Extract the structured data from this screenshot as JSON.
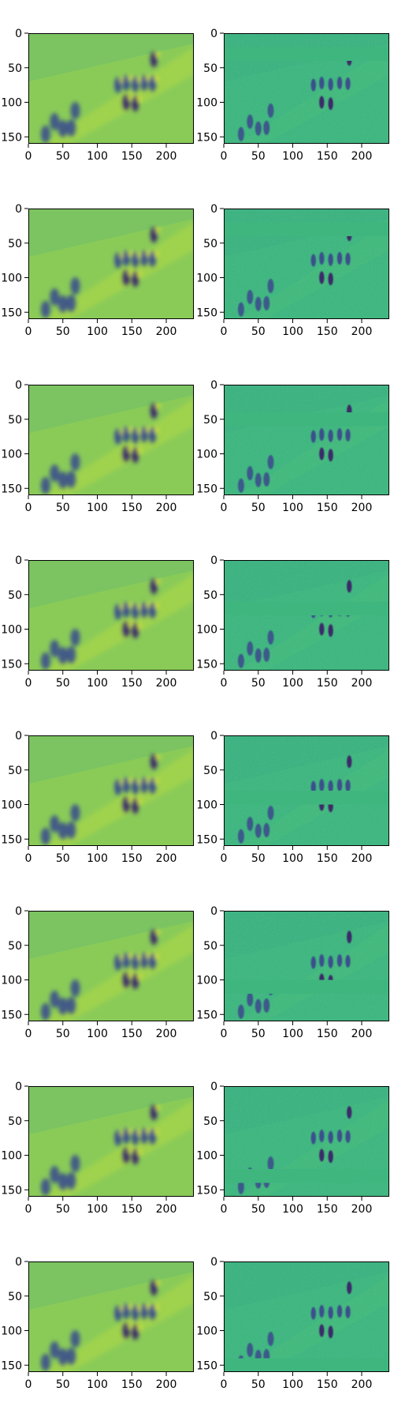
{
  "chart_data": {
    "type": "heatmap",
    "layout": {
      "rows": 8,
      "cols": 2
    },
    "colormap": "viridis",
    "image_extent": {
      "x": [
        0,
        240
      ],
      "y": [
        160,
        0
      ]
    },
    "x_ticks": [
      0,
      50,
      100,
      150,
      200
    ],
    "y_ticks": [
      0,
      50,
      100,
      150
    ],
    "x_tick_labels": [
      "0",
      "50",
      "100",
      "150",
      "200"
    ],
    "y_tick_labels": [
      "0",
      "50",
      "100",
      "150"
    ],
    "grid": false,
    "legend": "none",
    "colors": {
      "left_panel_base": "#8acb58",
      "right_panel_base": "#3eb67e",
      "dark_figure": "#3b4f8c",
      "darkest_figure": "#3a2a6a",
      "highlight": "#d8e23a",
      "frame": "#000000"
    },
    "masked_bands_right_column_y": [
      [
        20,
        40
      ],
      [
        20,
        40
      ],
      [
        40,
        60
      ],
      [
        60,
        80
      ],
      [
        80,
        100
      ],
      [
        100,
        120
      ],
      [
        120,
        140
      ],
      [
        140,
        160
      ]
    ]
  }
}
